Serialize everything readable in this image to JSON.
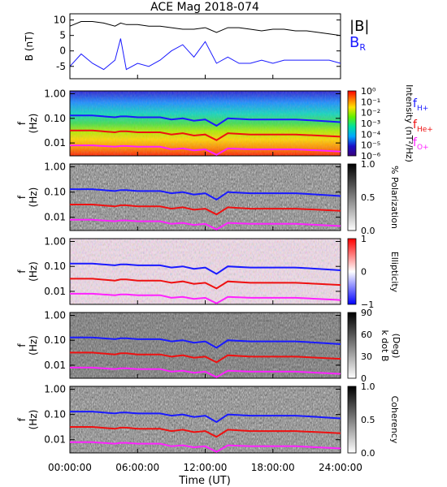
{
  "title": "ACE Mag 2018-074",
  "colors": {
    "total_b": "#000000",
    "br": "#1a1aff",
    "f_h": "#1a1aff",
    "f_he": "#ee1111",
    "f_o": "#ff22ff"
  },
  "x_axis": {
    "label": "Time (UT)",
    "ticks": [
      "00:00:00",
      "06:00:00",
      "12:00:00",
      "18:00:00",
      "24:00:00"
    ],
    "range_hours": [
      0,
      24
    ]
  },
  "chart_data": [
    {
      "type": "line",
      "panel": "magnetic-field",
      "ylabel": "B (nT)",
      "ylim": [
        -9,
        12
      ],
      "y_ticks": [
        "10",
        "5",
        "0",
        "-5"
      ],
      "legend": [
        "|B|",
        "B_R"
      ],
      "x_hours": [
        0,
        1,
        2,
        3,
        4,
        4.5,
        5,
        6,
        7,
        8,
        9,
        10,
        11,
        12,
        13,
        14,
        15,
        16,
        17,
        18,
        19,
        20,
        21,
        22,
        23,
        24
      ],
      "series": [
        {
          "name": "|B|",
          "values": [
            8,
            9.5,
            9.5,
            9,
            8,
            9,
            8.5,
            8.5,
            8,
            8,
            7.5,
            7,
            7,
            7.5,
            6,
            7.5,
            7.5,
            7,
            6.5,
            7,
            7,
            6.5,
            6.5,
            6,
            5.5,
            5
          ]
        },
        {
          "name": "B_R",
          "values": [
            -5,
            -1,
            -4,
            -6,
            -3,
            4,
            -6,
            -4,
            -5,
            -3,
            0,
            2,
            -2,
            3,
            -4,
            -2,
            -4,
            -4,
            -3,
            -4,
            -3,
            -3,
            -3,
            -3,
            -3,
            -4
          ]
        }
      ]
    },
    {
      "type": "heatmap",
      "panel": "wave-power",
      "ylabel": "f (Hz)",
      "y_ticks": [
        "1.00",
        "0.10",
        "0.01"
      ],
      "colorbar_label": "Intensity (nT²/Hz)",
      "colorbar_ticks": [
        "10⁰",
        "10⁻¹",
        "10⁻²",
        "10⁻³",
        "10⁻⁴",
        "10⁻⁵",
        "10⁻⁶"
      ],
      "legend": [
        "f_H+",
        "f_He+",
        "f_O+"
      ]
    },
    {
      "type": "heatmap",
      "panel": "polarization",
      "ylabel": "f (Hz)",
      "y_ticks": [
        "1.00",
        "0.10",
        "0.01"
      ],
      "colorbar_label": "% Polarization",
      "colorbar_ticks": [
        "1.0",
        "0.5",
        "0.0"
      ]
    },
    {
      "type": "heatmap",
      "panel": "ellipticity",
      "ylabel": "f (Hz)",
      "y_ticks": [
        "1.00",
        "0.10",
        "0.01"
      ],
      "colorbar_label": "Ellipticity",
      "colorbar_ticks": [
        "1",
        "0",
        "−1"
      ]
    },
    {
      "type": "heatmap",
      "panel": "k-dot-b",
      "ylabel": "f (Hz)",
      "y_ticks": [
        "1.00",
        "0.10",
        "0.01"
      ],
      "colorbar_label": "k dot B (Deg)",
      "colorbar_ticks": [
        "90",
        "60",
        "30",
        "0"
      ]
    },
    {
      "type": "heatmap",
      "panel": "coherency",
      "ylabel": "f (Hz)",
      "y_ticks": [
        "1.00",
        "0.10",
        "0.01"
      ],
      "colorbar_label": "Coherency",
      "colorbar_ticks": [
        "1.0",
        "0.5",
        "0.0"
      ]
    }
  ],
  "gyrofrequencies": {
    "x_hours": [
      0,
      2,
      4,
      4.5,
      5,
      6,
      8,
      9,
      10,
      11,
      12,
      13,
      14,
      16,
      18,
      20,
      22,
      24
    ],
    "f_h_hz": [
      0.13,
      0.13,
      0.11,
      0.12,
      0.12,
      0.11,
      0.11,
      0.09,
      0.1,
      0.08,
      0.09,
      0.05,
      0.1,
      0.09,
      0.09,
      0.09,
      0.08,
      0.07
    ],
    "f_he_hz": [
      0.032,
      0.032,
      0.027,
      0.03,
      0.03,
      0.027,
      0.027,
      0.022,
      0.025,
      0.02,
      0.022,
      0.013,
      0.025,
      0.022,
      0.022,
      0.022,
      0.02,
      0.018
    ],
    "f_o_hz": [
      0.008,
      0.008,
      0.007,
      0.0075,
      0.0075,
      0.007,
      0.007,
      0.0055,
      0.006,
      0.005,
      0.0055,
      0.0033,
      0.006,
      0.0055,
      0.0055,
      0.0055,
      0.005,
      0.0045
    ]
  }
}
